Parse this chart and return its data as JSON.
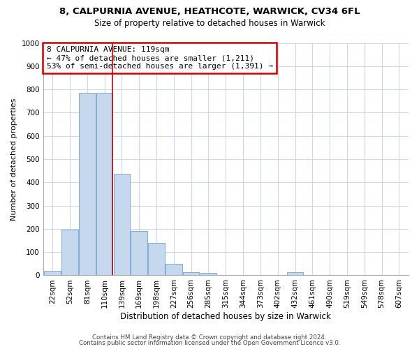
{
  "title1": "8, CALPURNIA AVENUE, HEATHCOTE, WARWICK, CV34 6FL",
  "title2": "Size of property relative to detached houses in Warwick",
  "xlabel": "Distribution of detached houses by size in Warwick",
  "ylabel": "Number of detached properties",
  "categories": [
    "22sqm",
    "52sqm",
    "81sqm",
    "110sqm",
    "139sqm",
    "169sqm",
    "198sqm",
    "227sqm",
    "256sqm",
    "285sqm",
    "315sqm",
    "344sqm",
    "373sqm",
    "402sqm",
    "432sqm",
    "461sqm",
    "490sqm",
    "519sqm",
    "549sqm",
    "578sqm",
    "607sqm"
  ],
  "values": [
    20,
    196,
    785,
    785,
    437,
    192,
    140,
    50,
    13,
    10,
    0,
    0,
    0,
    0,
    13,
    0,
    0,
    0,
    0,
    0,
    0
  ],
  "bar_color": "#c5d8ed",
  "bar_edge_color": "#7bafd4",
  "vline_color": "#cc0000",
  "vline_x_index": 3,
  "annotation_line1": "8 CALPURNIA AVENUE: 119sqm",
  "annotation_line2": "← 47% of detached houses are smaller (1,211)",
  "annotation_line3": "53% of semi-detached houses are larger (1,391) →",
  "annotation_box_color": "#ffffff",
  "annotation_box_edge_color": "#cc0000",
  "ylim": [
    0,
    1000
  ],
  "yticks": [
    0,
    100,
    200,
    300,
    400,
    500,
    600,
    700,
    800,
    900,
    1000
  ],
  "footer1": "Contains HM Land Registry data © Crown copyright and database right 2024.",
  "footer2": "Contains public sector information licensed under the Open Government Licence v3.0.",
  "background_color": "#ffffff",
  "grid_color": "#ccd8ea",
  "title1_fontsize": 9.5,
  "title2_fontsize": 8.5,
  "xlabel_fontsize": 8.5,
  "ylabel_fontsize": 8.0,
  "tick_fontsize": 7.5,
  "annotation_fontsize": 8.0,
  "footer_fontsize": 6.2
}
